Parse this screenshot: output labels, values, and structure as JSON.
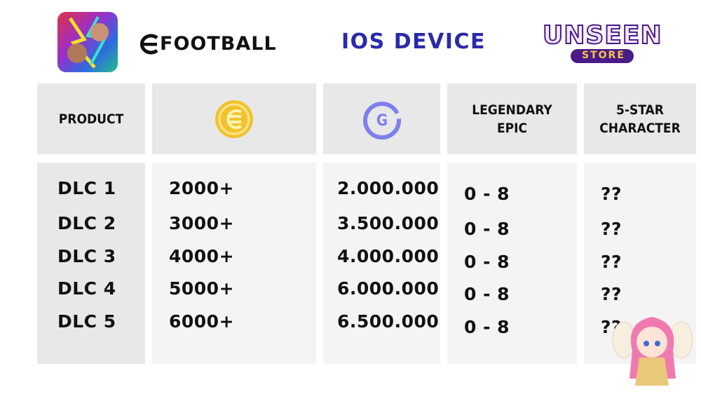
{
  "header": {
    "brand": "FOOTBALL",
    "title": "IOS DEVICE",
    "store_name": "UNSEEN",
    "store_sub": "STORE"
  },
  "table": {
    "header": [
      "PRODUCT",
      null,
      "G",
      "LEGENDARY EPIC",
      "5-STAR CHARACTER"
    ],
    "rows": [
      [
        "DLC 1",
        "2000+",
        "2.000.000",
        "0 - 8",
        "??"
      ],
      [
        "DLC 2",
        "3000+",
        "3.500.000",
        "0 - 8",
        "??"
      ],
      [
        "DLC 3",
        "4000+",
        "4.000.000",
        "0 - 8",
        "??"
      ],
      [
        "DLC 4",
        "5000+",
        "6.000.000",
        "0 - 8",
        "??"
      ],
      [
        "DLC 5",
        "6000+",
        "6.500.000",
        "0 - 8",
        "??"
      ]
    ]
  }
}
